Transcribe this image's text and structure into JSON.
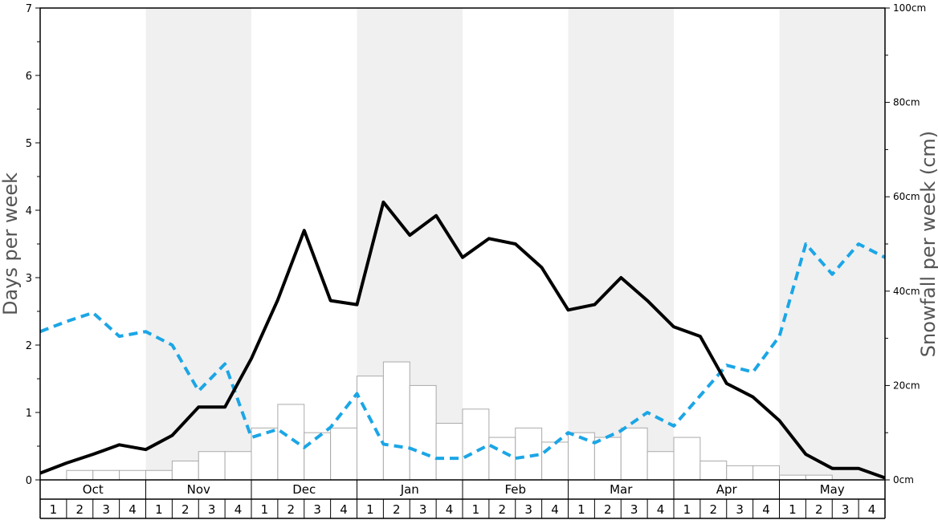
{
  "chart_data": {
    "type": "bar",
    "ylabel": "Days per week",
    "y2label": "Snowfall per week (cm)",
    "ylim": [
      0,
      7
    ],
    "y2lim": [
      0,
      100
    ],
    "yticks": [
      "0",
      "1",
      "2",
      "3",
      "4",
      "5",
      "6",
      "7"
    ],
    "y2ticks": [
      "0cm",
      "20cm",
      "40cm",
      "60cm",
      "80cm",
      "100cm"
    ],
    "months": [
      "Oct",
      "Nov",
      "Dec",
      "Jan",
      "Feb",
      "Mar",
      "Apr",
      "May"
    ],
    "week_labels": [
      "1",
      "2",
      "3",
      "4"
    ],
    "snowfall_bars_cm": [
      0,
      2,
      2,
      2,
      2,
      4,
      6,
      6,
      11,
      16,
      10,
      11,
      22,
      25,
      20,
      12,
      15,
      9,
      11,
      8,
      10,
      9,
      11,
      6,
      9,
      4,
      3,
      3,
      1,
      1,
      0,
      0
    ],
    "powder_days_line": [
      0.1,
      0.25,
      0.38,
      0.52,
      0.45,
      0.66,
      1.08,
      1.08,
      1.8,
      2.67,
      3.7,
      2.66,
      2.6,
      4.12,
      3.63,
      3.92,
      3.3,
      3.58,
      3.5,
      3.15,
      2.52,
      2.6,
      3.0,
      2.66,
      2.27,
      2.13,
      1.43,
      1.23,
      0.88,
      0.38,
      0.17,
      0.17,
      0.03
    ],
    "dashed_line": [
      2.2,
      2.35,
      2.48,
      2.13,
      2.2,
      2.0,
      1.32,
      1.72,
      0.63,
      0.75,
      0.48,
      0.78,
      1.28,
      0.53,
      0.47,
      0.32,
      0.32,
      0.52,
      0.32,
      0.38,
      0.7,
      0.55,
      0.73,
      1.0,
      0.8,
      1.25,
      1.7,
      1.6,
      2.13,
      3.5,
      3.05,
      3.5,
      3.3
    ],
    "colors": {
      "solid_line": "#000000",
      "dashed_line": "#1ba6e6",
      "bar_fill": "#ffffff",
      "bar_stroke": "#aaaaaa",
      "band_shade": "#f0f0f0"
    },
    "shaded_months": [
      "Nov",
      "Jan",
      "Mar",
      "May"
    ]
  }
}
